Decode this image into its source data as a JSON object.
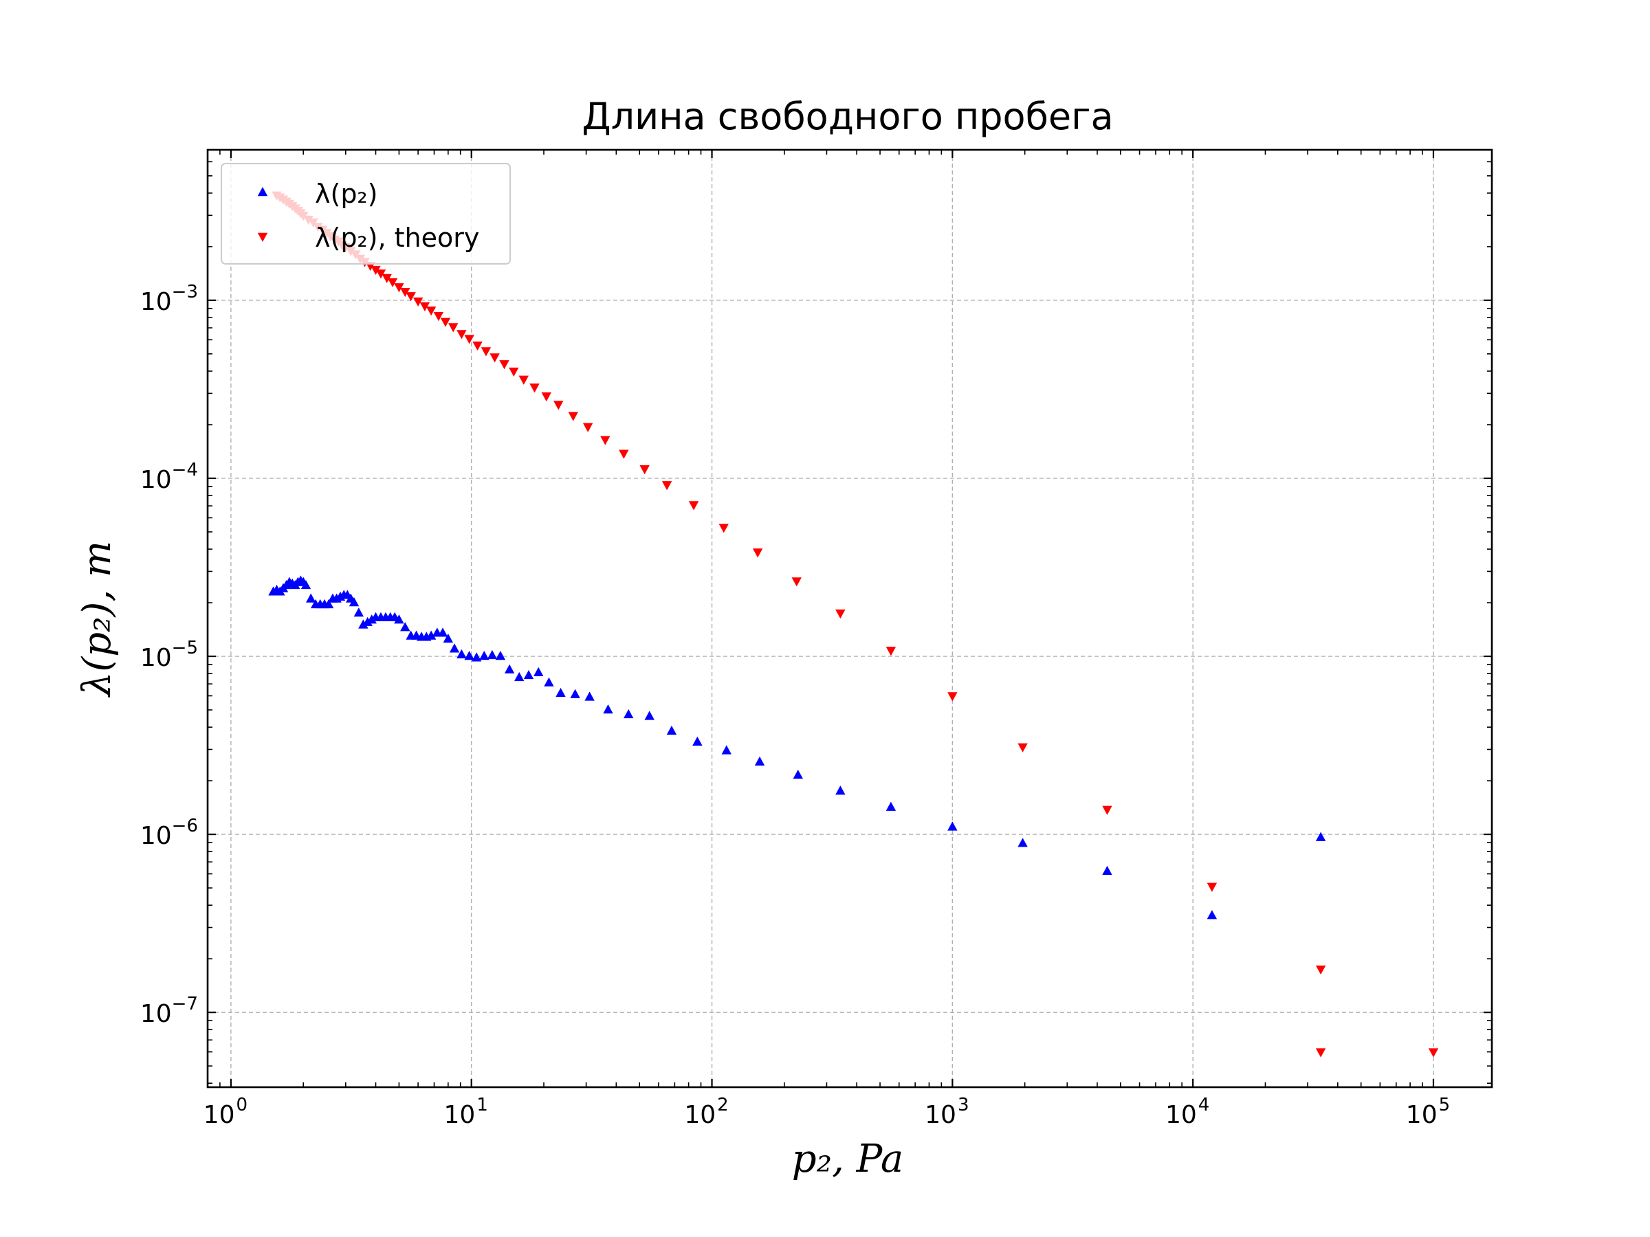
{
  "chart_data": {
    "type": "scatter",
    "title": "Длина свободного пробега",
    "xlabel": "p₂, Pa",
    "ylabel": "λ(p₂), m",
    "xscale": "log",
    "yscale": "log",
    "xlim": [
      0.8,
      175000
    ],
    "ylim": [
      3.8e-08,
      0.007
    ],
    "x_ticks": [
      1,
      10,
      100,
      1000,
      10000,
      100000
    ],
    "x_tick_labels": [
      {
        "base": "10",
        "exp": "0"
      },
      {
        "base": "10",
        "exp": "1"
      },
      {
        "base": "10",
        "exp": "2"
      },
      {
        "base": "10",
        "exp": "3"
      },
      {
        "base": "10",
        "exp": "4"
      },
      {
        "base": "10",
        "exp": "5"
      }
    ],
    "y_ticks": [
      1e-07,
      1e-06,
      1e-05,
      0.0001,
      0.001
    ],
    "y_tick_labels": [
      {
        "base": "10",
        "exp": "−7"
      },
      {
        "base": "10",
        "exp": "−6"
      },
      {
        "base": "10",
        "exp": "−5"
      },
      {
        "base": "10",
        "exp": "−4"
      },
      {
        "base": "10",
        "exp": "−3"
      }
    ],
    "grid": true,
    "legend_position": "top-left",
    "series": [
      {
        "name": "λ(p₂)",
        "marker": "triangle-up",
        "color": "#0000ff",
        "points": [
          [
            1.5,
            2.3e-05
          ],
          [
            1.55,
            2.35e-05
          ],
          [
            1.6,
            2.3e-05
          ],
          [
            1.65,
            2.4e-05
          ],
          [
            1.7,
            2.5e-05
          ],
          [
            1.75,
            2.6e-05
          ],
          [
            1.8,
            2.55e-05
          ],
          [
            1.85,
            2.5e-05
          ],
          [
            1.9,
            2.6e-05
          ],
          [
            1.95,
            2.65e-05
          ],
          [
            2.0,
            2.6e-05
          ],
          [
            2.05,
            2.5e-05
          ],
          [
            2.15,
            2.1e-05
          ],
          [
            2.25,
            1.95e-05
          ],
          [
            2.35,
            1.95e-05
          ],
          [
            2.45,
            1.95e-05
          ],
          [
            2.55,
            1.95e-05
          ],
          [
            2.65,
            2.1e-05
          ],
          [
            2.75,
            2.1e-05
          ],
          [
            2.85,
            2.15e-05
          ],
          [
            2.95,
            2.2e-05
          ],
          [
            3.05,
            2.2e-05
          ],
          [
            3.15,
            2.1e-05
          ],
          [
            3.25,
            2e-05
          ],
          [
            3.4,
            1.75e-05
          ],
          [
            3.55,
            1.5e-05
          ],
          [
            3.7,
            1.55e-05
          ],
          [
            3.85,
            1.6e-05
          ],
          [
            4.0,
            1.65e-05
          ],
          [
            4.2,
            1.65e-05
          ],
          [
            4.4,
            1.65e-05
          ],
          [
            4.6,
            1.65e-05
          ],
          [
            4.8,
            1.65e-05
          ],
          [
            5.0,
            1.6e-05
          ],
          [
            5.3,
            1.45e-05
          ],
          [
            5.6,
            1.3e-05
          ],
          [
            5.9,
            1.3e-05
          ],
          [
            6.2,
            1.28e-05
          ],
          [
            6.5,
            1.28e-05
          ],
          [
            6.8,
            1.3e-05
          ],
          [
            7.2,
            1.35e-05
          ],
          [
            7.6,
            1.35e-05
          ],
          [
            8.0,
            1.25e-05
          ],
          [
            8.5,
            1.1e-05
          ],
          [
            9.1,
            1.02e-05
          ],
          [
            9.8,
            1e-05
          ],
          [
            10.5,
            9.8e-06
          ],
          [
            11.3,
            1e-05
          ],
          [
            12.2,
            1.01e-05
          ],
          [
            13.2,
            1e-05
          ],
          [
            14.4,
            8.4e-06
          ],
          [
            15.8,
            7.6e-06
          ],
          [
            17.3,
            7.8e-06
          ],
          [
            19.0,
            8.1e-06
          ],
          [
            21.0,
            7.1e-06
          ],
          [
            23.5,
            6.2e-06
          ],
          [
            27.0,
            6.1e-06
          ],
          [
            31.0,
            5.9e-06
          ],
          [
            37.0,
            5e-06
          ],
          [
            45.0,
            4.7e-06
          ],
          [
            55.0,
            4.6e-06
          ],
          [
            68.0,
            3.8e-06
          ],
          [
            87.0,
            3.3e-06
          ],
          [
            115.0,
            2.95e-06
          ],
          [
            158.0,
            2.55e-06
          ],
          [
            228.0,
            2.15e-06
          ],
          [
            342.0,
            1.75e-06
          ],
          [
            555.0,
            1.42e-06
          ],
          [
            1000.0,
            1.1e-06
          ],
          [
            1960.0,
            8.9e-07
          ],
          [
            4400.0,
            6.2e-07
          ],
          [
            12000.0,
            3.5e-07
          ],
          [
            34000.0,
            9.6e-07
          ]
        ]
      },
      {
        "name": "λ(p₂), theory",
        "marker": "triangle-down",
        "color": "#ff0000",
        "points": [
          [
            1.55,
            0.0039
          ],
          [
            1.6,
            0.0038
          ],
          [
            1.65,
            0.0037
          ],
          [
            1.7,
            0.0036
          ],
          [
            1.75,
            0.0035
          ],
          [
            1.8,
            0.0034
          ],
          [
            1.85,
            0.0033
          ],
          [
            1.9,
            0.0032
          ],
          [
            1.95,
            0.0031
          ],
          [
            2.0,
            0.003
          ],
          [
            2.1,
            0.00285
          ],
          [
            2.2,
            0.00275
          ],
          [
            2.3,
            0.0026
          ],
          [
            2.4,
            0.0025
          ],
          [
            2.5,
            0.0024
          ],
          [
            2.6,
            0.0023
          ],
          [
            2.7,
            0.0022
          ],
          [
            2.8,
            0.00215
          ],
          [
            2.9,
            0.00205
          ],
          [
            3.0,
            0.002
          ],
          [
            3.15,
            0.0019
          ],
          [
            3.3,
            0.00182
          ],
          [
            3.45,
            0.00172
          ],
          [
            3.6,
            0.00165
          ],
          [
            3.8,
            0.00157
          ],
          [
            4.0,
            0.00149
          ],
          [
            4.2,
            0.00142
          ],
          [
            4.45,
            0.00134
          ],
          [
            4.7,
            0.00127
          ],
          [
            5.0,
            0.00119
          ],
          [
            5.3,
            0.00112
          ],
          [
            5.6,
            0.00106
          ],
          [
            6.0,
            0.00099
          ],
          [
            6.4,
            0.00093
          ],
          [
            6.8,
            0.00088
          ],
          [
            7.3,
            0.00082
          ],
          [
            7.8,
            0.00076
          ],
          [
            8.4,
            0.00071
          ],
          [
            9.1,
            0.00065
          ],
          [
            9.8,
            0.00061
          ],
          [
            10.6,
            0.00056
          ],
          [
            11.5,
            0.00052
          ],
          [
            12.5,
            0.00048
          ],
          [
            13.7,
            0.00044
          ],
          [
            15.0,
            0.0004
          ],
          [
            16.5,
            0.00036
          ],
          [
            18.3,
            0.000325
          ],
          [
            20.5,
            0.00029
          ],
          [
            23.0,
            0.00026
          ],
          [
            26.5,
            0.000225
          ],
          [
            30.5,
            0.000195
          ],
          [
            36.0,
            0.000165
          ],
          [
            43.0,
            0.000138
          ],
          [
            52.5,
            0.000113
          ],
          [
            65.0,
            9.2e-05
          ],
          [
            84.0,
            7.1e-05
          ],
          [
            112.0,
            5.3e-05
          ],
          [
            155.0,
            3.85e-05
          ],
          [
            225.0,
            2.65e-05
          ],
          [
            342.0,
            1.75e-05
          ],
          [
            555.0,
            1.08e-05
          ],
          [
            1000.0,
            6e-06
          ],
          [
            1960.0,
            3.1e-06
          ],
          [
            4400.0,
            1.38e-06
          ],
          [
            12000.0,
            5.1e-07
          ],
          [
            34000.0,
            1.75e-07
          ],
          [
            100000.0,
            6e-08
          ],
          [
            34000.0,
            6e-08
          ]
        ]
      }
    ]
  }
}
